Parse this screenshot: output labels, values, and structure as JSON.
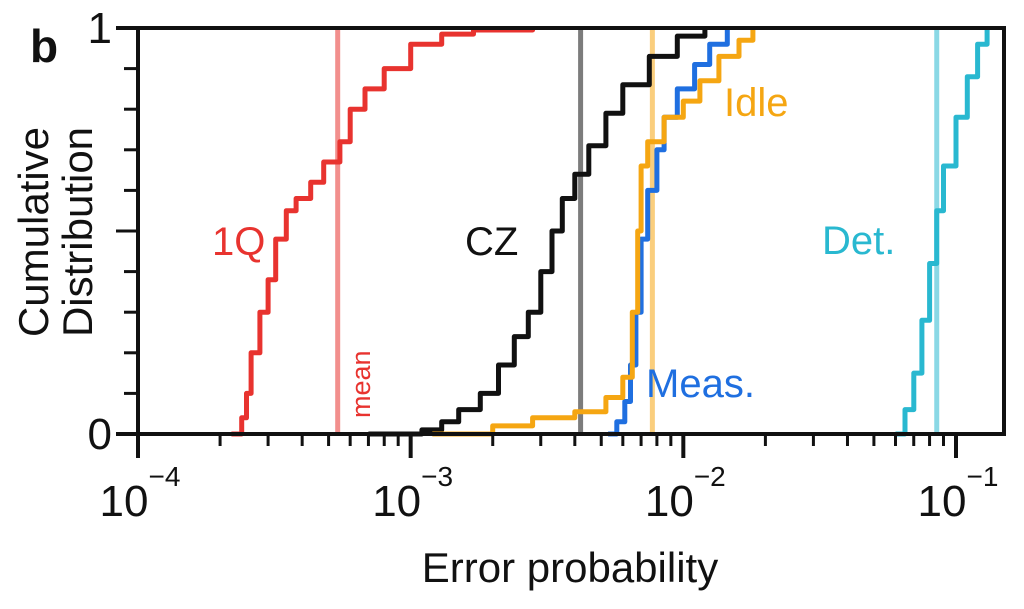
{
  "panel_label": "b",
  "chart_data": {
    "type": "line",
    "x_scale": "log",
    "xlabel": "Error probability",
    "ylabel_lines": [
      "Cumulative",
      "Distribution"
    ],
    "xlim": [
      0.0001,
      0.15
    ],
    "ylim": [
      0,
      1
    ],
    "x_ticks": [
      {
        "base": "10",
        "exp": "−4",
        "value": 0.0001
      },
      {
        "base": "10",
        "exp": "−3",
        "value": 0.001
      },
      {
        "base": "10",
        "exp": "−2",
        "value": 0.01
      },
      {
        "base": "10",
        "exp": "−1",
        "value": 0.1
      }
    ],
    "y_ticks": [
      {
        "label": "0",
        "value": 0
      },
      {
        "label": "1",
        "value": 1
      }
    ],
    "series": [
      {
        "name": "1Q",
        "color": "#e8332f",
        "mean": 0.00054,
        "points": [
          [
            0.00022,
            0
          ],
          [
            0.00024,
            0.04
          ],
          [
            0.00025,
            0.1
          ],
          [
            0.00026,
            0.2
          ],
          [
            0.00028,
            0.3
          ],
          [
            0.0003,
            0.38
          ],
          [
            0.00032,
            0.48
          ],
          [
            0.00035,
            0.55
          ],
          [
            0.00038,
            0.58
          ],
          [
            0.00043,
            0.62
          ],
          [
            0.00048,
            0.67
          ],
          [
            0.00055,
            0.72
          ],
          [
            0.0006,
            0.8
          ],
          [
            0.00068,
            0.85
          ],
          [
            0.0008,
            0.9
          ],
          [
            0.001,
            0.96
          ],
          [
            0.0013,
            0.985
          ],
          [
            0.0017,
            0.995
          ],
          [
            0.0028,
            1
          ]
        ]
      },
      {
        "name": "CZ",
        "color": "#111111",
        "mean": 0.0042,
        "points": [
          [
            0.0007,
            0
          ],
          [
            0.0011,
            0.01
          ],
          [
            0.0013,
            0.03
          ],
          [
            0.0015,
            0.06
          ],
          [
            0.0018,
            0.1
          ],
          [
            0.0021,
            0.17
          ],
          [
            0.0024,
            0.24
          ],
          [
            0.0027,
            0.3
          ],
          [
            0.003,
            0.4
          ],
          [
            0.0033,
            0.5
          ],
          [
            0.0036,
            0.58
          ],
          [
            0.004,
            0.64
          ],
          [
            0.0045,
            0.71
          ],
          [
            0.0052,
            0.79
          ],
          [
            0.006,
            0.86
          ],
          [
            0.0075,
            0.93
          ],
          [
            0.0095,
            0.98
          ],
          [
            0.012,
            1
          ]
        ]
      },
      {
        "name": "Meas.",
        "color": "#1f6fe0",
        "mean": null,
        "points": [
          [
            0.0053,
            0
          ],
          [
            0.0057,
            0.03
          ],
          [
            0.0061,
            0.08
          ],
          [
            0.0064,
            0.17
          ],
          [
            0.0067,
            0.3
          ],
          [
            0.007,
            0.48
          ],
          [
            0.0074,
            0.6
          ],
          [
            0.008,
            0.7
          ],
          [
            0.0085,
            0.78
          ],
          [
            0.0095,
            0.85
          ],
          [
            0.011,
            0.91
          ],
          [
            0.0125,
            0.96
          ],
          [
            0.0145,
            1
          ]
        ]
      },
      {
        "name": "Idle",
        "color": "#f5a612",
        "mean": 0.0077,
        "points": [
          [
            0.0012,
            0
          ],
          [
            0.002,
            0.02
          ],
          [
            0.0028,
            0.04
          ],
          [
            0.004,
            0.055
          ],
          [
            0.0052,
            0.09
          ],
          [
            0.006,
            0.14
          ],
          [
            0.0065,
            0.3
          ],
          [
            0.0068,
            0.5
          ],
          [
            0.007,
            0.66
          ],
          [
            0.0074,
            0.72
          ],
          [
            0.0085,
            0.78
          ],
          [
            0.01,
            0.82
          ],
          [
            0.0115,
            0.87
          ],
          [
            0.0135,
            0.93
          ],
          [
            0.016,
            0.97
          ],
          [
            0.018,
            1
          ]
        ]
      },
      {
        "name": "Det.",
        "color": "#29b8d0",
        "mean": 0.085,
        "points": [
          [
            0.06,
            0
          ],
          [
            0.065,
            0.06
          ],
          [
            0.07,
            0.15
          ],
          [
            0.075,
            0.28
          ],
          [
            0.08,
            0.42
          ],
          [
            0.085,
            0.55
          ],
          [
            0.09,
            0.66
          ],
          [
            0.1,
            0.78
          ],
          [
            0.11,
            0.88
          ],
          [
            0.12,
            0.96
          ],
          [
            0.13,
            1
          ]
        ]
      }
    ],
    "annotations": [
      {
        "text": "mean",
        "color": "#e8332f"
      }
    ]
  }
}
